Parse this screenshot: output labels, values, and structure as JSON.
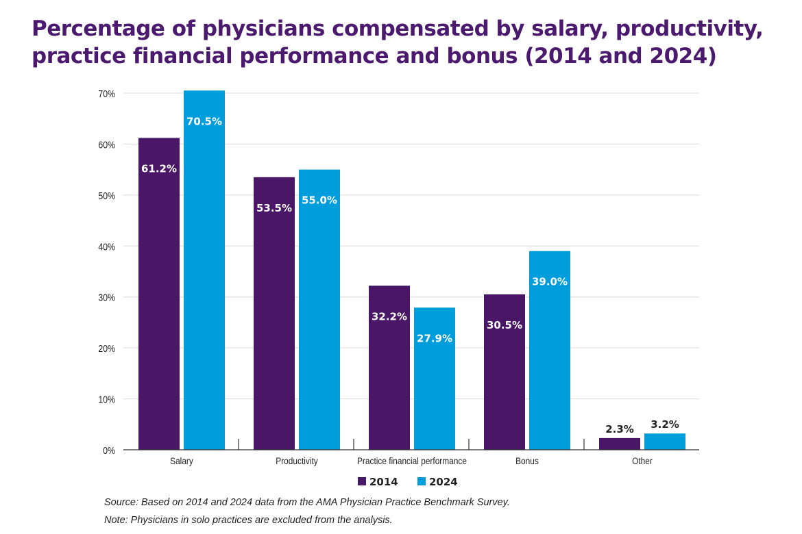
{
  "chart_data": {
    "type": "bar",
    "title": "Percentage of physicians compensated by salary, productivity, practice financial performance and bonus (2014 and 2024)",
    "categories": [
      "Salary",
      "Productivity",
      "Practice financial performance",
      "Bonus",
      "Other"
    ],
    "series": [
      {
        "name": "2014",
        "color": "#4a1766",
        "values": [
          61.2,
          53.5,
          32.2,
          30.5,
          2.3
        ],
        "labels": [
          "61.2%",
          "53.5%",
          "32.2%",
          "30.5%",
          "2.3%"
        ]
      },
      {
        "name": "2024",
        "color": "#009ddc",
        "values": [
          70.5,
          55.0,
          27.9,
          39.0,
          3.2
        ],
        "labels": [
          "70.5%",
          "55.0%",
          "27.9%",
          "39.0%",
          "3.2%"
        ]
      }
    ],
    "ylim": [
      0,
      70
    ],
    "yticks": [
      "0%",
      "10%",
      "20%",
      "30%",
      "40%",
      "50%",
      "60%",
      "70%"
    ],
    "grid": true,
    "legend": "bottom-center",
    "xlabel": "",
    "ylabel": ""
  },
  "footer": {
    "source": "Source: Based on 2014 and 2024 data from the AMA Physician Practice Benchmark Survey.",
    "note": "Note: Physicians in solo practices are excluded from the analysis."
  }
}
